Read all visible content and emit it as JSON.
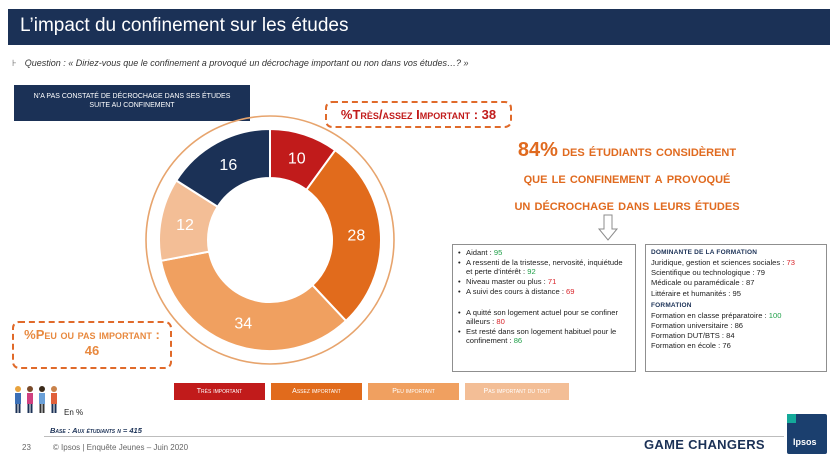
{
  "header": {
    "title": "L’impact du confinement sur les études"
  },
  "question": {
    "marker": "⊦",
    "text": "Question : « Diriez-vous que le confinement a provoqué un décrochage important ou non dans vos études…? »"
  },
  "not_noticed": "N’a pas constaté de décrochage dans ses études suite au confinement",
  "summary_high": {
    "label": "%Très/assez Important",
    "value": "38"
  },
  "summary_low": {
    "label": "%Peu ou pas important :",
    "value": "46"
  },
  "headline": {
    "pct": "84%",
    "rest": " des étudiants considèrent",
    "line2": "que le confinement a provoqué",
    "line3": "un décrochage dans leurs études"
  },
  "reasons": [
    {
      "label": "Aidant : ",
      "value": "95",
      "color": "green",
      "gap": false
    },
    {
      "label": "A ressenti de la tristesse, nervosité, inquiétude et perte d’intérêt : ",
      "value": "92",
      "color": "green",
      "gap": false
    },
    {
      "label": "Niveau master ou plus : ",
      "value": "71",
      "color": "red",
      "gap": false
    },
    {
      "label": "A suivi des cours à distance : ",
      "value": "69",
      "color": "red",
      "gap": false
    },
    {
      "label": "A quitté son logement actuel pour se confiner ailleurs : ",
      "value": "80",
      "color": "red",
      "gap": true
    },
    {
      "label": "Est resté dans son logement habituel pour le confinement : ",
      "value": "86",
      "color": "green",
      "gap": false
    }
  ],
  "dominant": {
    "title1": "Dominante de la formation",
    "items1": [
      {
        "label": "Juridique, gestion et sciences sociales : ",
        "value": "73",
        "color": "red"
      },
      {
        "label": "Scientifique ou technologique : ",
        "value": "79",
        "color": ""
      },
      {
        "label": "Médicale ou paramédicale : ",
        "value": "87",
        "color": ""
      },
      {
        "label": "Littéraire et humanités : ",
        "value": "95",
        "color": ""
      }
    ],
    "title2": "Formation",
    "items2": [
      {
        "label": "Formation en classe préparatoire : ",
        "value": "100",
        "color": "green"
      },
      {
        "label": "Formation universitaire : ",
        "value": "86",
        "color": ""
      },
      {
        "label": "Formation DUT/BTS : ",
        "value": "84",
        "color": ""
      },
      {
        "label": "Formation en école : ",
        "value": "76",
        "color": ""
      }
    ]
  },
  "chart_data": {
    "type": "pie",
    "categories": [
      "Très important",
      "Assez important",
      "Peu important",
      "Pas important du tout"
    ],
    "values": [
      10,
      28,
      34,
      12
    ],
    "colors": [
      "#c11b1b",
      "#e16b1c",
      "#f0a060",
      "#f3be96"
    ],
    "remainder": {
      "label": "N’a pas constaté de décrochage dans ses études suite au confinement",
      "value": 16,
      "color": "#1b3156"
    },
    "unit": "En %"
  },
  "footer": {
    "base": "Base : Aux étudiants n = 415",
    "page": "23",
    "source": "© Ipsos | Enquête Jeunes – Juin 2020",
    "brand": "GAME CHANGERS",
    "logo": "Ipsos"
  }
}
